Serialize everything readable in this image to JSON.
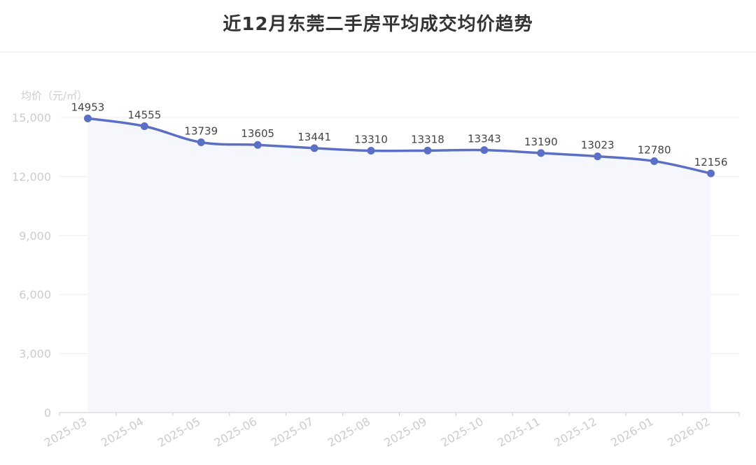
{
  "page": {
    "title": "近12月东莞二手房平均成交均价趋势"
  },
  "chart_data": {
    "type": "line",
    "title": "近12月东莞二手房平均成交均价趋势",
    "ylabel": "均价（元/㎡）",
    "xlabel": "",
    "categories": [
      "2025-03",
      "2025-04",
      "2025-05",
      "2025-06",
      "2025-07",
      "2025-08",
      "2025-09",
      "2025-10",
      "2025-11",
      "2025-12",
      "2026-01",
      "2026-02"
    ],
    "series": [
      {
        "values": [
          14953,
          14555,
          13739,
          13605,
          13441,
          13310,
          13318,
          13343,
          13190,
          13023,
          12780,
          12156
        ]
      }
    ],
    "data_labels": [
      "14953",
      "14555",
      "13739",
      "13605",
      "13441",
      "13310",
      "13318",
      "13343",
      "13190",
      "13023",
      "12780",
      "12156"
    ],
    "ylim": [
      0,
      15000
    ],
    "yticks": [
      0,
      3000,
      6000,
      9000,
      12000,
      15000
    ],
    "ytick_labels": [
      "0",
      "3,000",
      "6,000",
      "9,000",
      "12,000",
      "15,000"
    ],
    "grid": true,
    "smooth": true,
    "area_fill": true,
    "legend": "none",
    "colors": {
      "line": "#5b70c4",
      "area": "#f5f7fc",
      "grid": "#eeeeee",
      "axis_label": "#cccccc",
      "data_label": "#444444"
    }
  }
}
